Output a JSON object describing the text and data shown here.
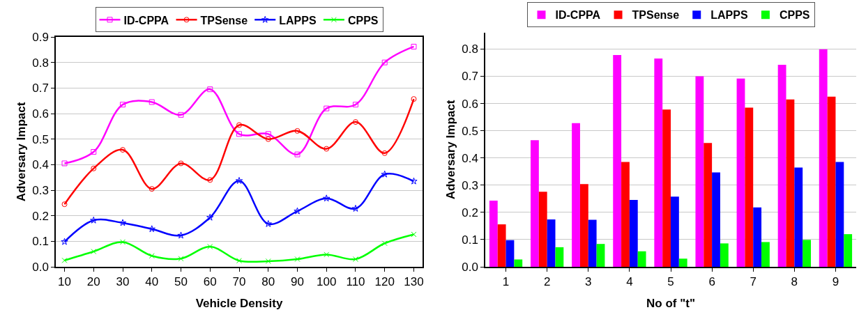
{
  "chart_data": [
    {
      "type": "line",
      "xlabel": "Vehicle Density",
      "ylabel": "Adversary Impact",
      "x": [
        10,
        20,
        30,
        40,
        50,
        60,
        70,
        80,
        90,
        100,
        110,
        120,
        130
      ],
      "xlim": [
        7,
        133
      ],
      "xticks": [
        10,
        20,
        30,
        40,
        50,
        60,
        70,
        80,
        90,
        100,
        110,
        120,
        130
      ],
      "ylim": [
        0,
        0.9
      ],
      "yticks": [
        {
          "value": 0,
          "label": "0.0"
        },
        0.1,
        0.2,
        0.3,
        0.4,
        0.5,
        0.6,
        0.7,
        0.8,
        0.9
      ],
      "grid": "y",
      "legend": "top",
      "line_style": "solid",
      "series": [
        {
          "name": "ID-CPPA",
          "color": "#ff00ff",
          "marker": "square",
          "values": [
            0.405,
            0.45,
            0.635,
            0.645,
            0.595,
            0.695,
            0.52,
            0.52,
            0.44,
            0.62,
            0.635,
            0.8,
            0.862
          ]
        },
        {
          "name": "TPSense",
          "color": "#ff0000",
          "marker": "circle",
          "values": [
            0.245,
            0.385,
            0.458,
            0.305,
            0.405,
            0.34,
            0.555,
            0.5,
            0.532,
            0.462,
            0.567,
            0.445,
            0.657
          ]
        },
        {
          "name": "LAPPS",
          "color": "#0000ff",
          "marker": "star",
          "values": [
            0.098,
            0.182,
            0.172,
            0.148,
            0.123,
            0.193,
            0.337,
            0.168,
            0.218,
            0.268,
            0.228,
            0.362,
            0.335
          ]
        },
        {
          "name": "CPPS",
          "color": "#00ff00",
          "marker": "cross",
          "values": [
            0.025,
            0.06,
            0.097,
            0.043,
            0.032,
            0.079,
            0.024,
            0.022,
            0.03,
            0.048,
            0.03,
            0.092,
            0.127
          ]
        }
      ]
    },
    {
      "type": "bar",
      "xlabel": "No of \"t\"",
      "ylabel": "Adversary Impact",
      "categories": [
        "1",
        "2",
        "3",
        "4",
        "5",
        "6",
        "7",
        "8",
        "9"
      ],
      "ylim": [
        0,
        0.86
      ],
      "yticks": [
        {
          "value": 0,
          "label": "0.0"
        },
        0.1,
        0.2,
        0.3,
        0.4,
        0.5,
        0.6,
        0.7,
        0.8
      ],
      "grid": "y",
      "legend": "top",
      "series": [
        {
          "name": "ID-CPPA",
          "color": "#ff00ff",
          "values": [
            0.243,
            0.465,
            0.528,
            0.778,
            0.765,
            0.7,
            0.692,
            0.742,
            0.799
          ]
        },
        {
          "name": "TPSense",
          "color": "#ff0000",
          "values": [
            0.156,
            0.276,
            0.304,
            0.385,
            0.578,
            0.455,
            0.585,
            0.615,
            0.625
          ]
        },
        {
          "name": "LAPPS",
          "color": "#0000ff",
          "values": [
            0.098,
            0.174,
            0.173,
            0.246,
            0.258,
            0.347,
            0.218,
            0.365,
            0.385
          ]
        },
        {
          "name": "CPPS",
          "color": "#00ff00",
          "values": [
            0.027,
            0.072,
            0.084,
            0.057,
            0.03,
            0.086,
            0.091,
            0.099,
            0.12
          ]
        }
      ]
    }
  ]
}
